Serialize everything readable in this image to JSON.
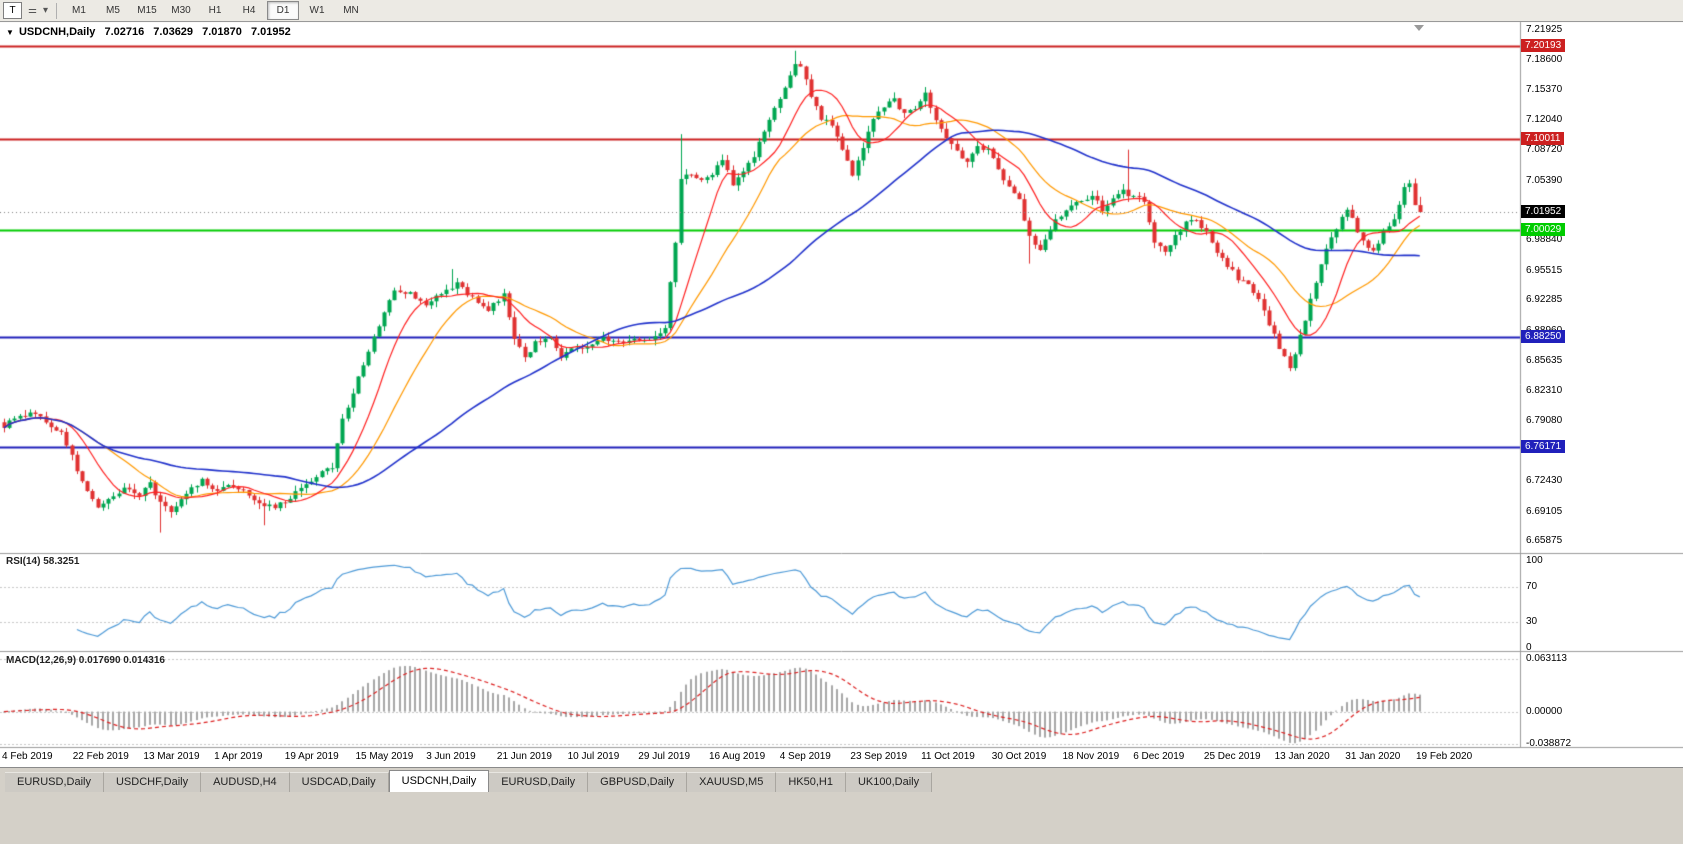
{
  "colors": {
    "up_candle": "#00a651",
    "down_candle": "#e03232",
    "rsi_line": "#4f9bd8",
    "macd_hist": "#a8a8a8",
    "macd_signal": "#dd2222",
    "current_price_bg": "#000000"
  },
  "toolbar": {
    "window_label": "T",
    "icons": [
      {
        "name": "chart-tool-icon",
        "glyph": "⚌"
      },
      {
        "name": "dropdown-caret-icon",
        "glyph": "▾"
      }
    ],
    "timeframes": [
      {
        "label": "M1",
        "active": false
      },
      {
        "label": "M5",
        "active": false
      },
      {
        "label": "M15",
        "active": false
      },
      {
        "label": "M30",
        "active": false
      },
      {
        "label": "H1",
        "active": false
      },
      {
        "label": "H4",
        "active": false
      },
      {
        "label": "D1",
        "active": true
      },
      {
        "label": "W1",
        "active": false
      },
      {
        "label": "MN",
        "active": false
      }
    ]
  },
  "chart": {
    "title": {
      "arrow": "▼",
      "symbol": "USDCNH,Daily",
      "open": "7.02716",
      "high": "7.03629",
      "low": "7.01870",
      "close": "7.01952"
    }
  },
  "price_axis": {
    "labels": [
      {
        "text": "7.21925",
        "value": 7.21925
      },
      {
        "text": "7.18600",
        "value": 7.186
      },
      {
        "text": "7.15370",
        "value": 7.1537
      },
      {
        "text": "7.12040",
        "value": 7.1204
      },
      {
        "text": "7.08720",
        "value": 7.0872
      },
      {
        "text": "7.05390",
        "value": 7.0539
      },
      {
        "text": "6.98840",
        "value": 6.9884
      },
      {
        "text": "6.95515",
        "value": 6.95515
      },
      {
        "text": "6.92285",
        "value": 6.92285
      },
      {
        "text": "6.88960",
        "value": 6.8896
      },
      {
        "text": "6.85635",
        "value": 6.85635
      },
      {
        "text": "6.82310",
        "value": 6.8231
      },
      {
        "text": "6.79080",
        "value": 6.7908
      },
      {
        "text": "6.75755",
        "value": 6.75755
      },
      {
        "text": "6.72430",
        "value": 6.7243
      },
      {
        "text": "6.69105",
        "value": 6.69105
      },
      {
        "text": "6.65875",
        "value": 6.65875
      }
    ]
  },
  "hlines": [
    {
      "text": "7.20193",
      "value": 7.20193,
      "color": "#cc2020",
      "type": "resistance-upper"
    },
    {
      "text": "7.10011",
      "value": 7.10011,
      "color": "#cc2020",
      "type": "resistance-lower"
    },
    {
      "text": "7.00029",
      "value": 7.00029,
      "color": "#00cc00",
      "type": "pivot"
    },
    {
      "text": "6.88250",
      "value": 6.8825,
      "color": "#2020bb",
      "type": "support-upper"
    },
    {
      "text": "6.76171",
      "value": 6.76171,
      "color": "#2020bb",
      "type": "support-lower"
    }
  ],
  "current_price": {
    "text": "7.01952",
    "value": 7.01952
  },
  "rsi_panel": {
    "label": "RSI(14) 58.3251",
    "axis": [
      {
        "text": "100",
        "value": 100
      },
      {
        "text": "70",
        "value": 70
      },
      {
        "text": "30",
        "value": 30
      },
      {
        "text": "0",
        "value": 0
      }
    ],
    "levels": [
      70,
      30
    ]
  },
  "macd_panel": {
    "label": "MACD(12,26,9) 0.017690 0.014316",
    "axis": [
      {
        "text": "0.063113",
        "value": 0.063113
      },
      {
        "text": "0.00000",
        "value": 0
      },
      {
        "text": "-0.038872",
        "value": -0.038872
      }
    ]
  },
  "time_axis": {
    "labels": [
      "4 Feb 2019",
      "22 Feb 2019",
      "13 Mar 2019",
      "1 Apr 2019",
      "19 Apr 2019",
      "15 May 2019",
      "3 Jun 2019",
      "21 Jun 2019",
      "10 Jul 2019",
      "29 Jul 2019",
      "16 Aug 2019",
      "4 Sep 2019",
      "23 Sep 2019",
      "11 Oct 2019",
      "30 Oct 2019",
      "18 Nov 2019",
      "6 Dec 2019",
      "25 Dec 2019",
      "13 Jan 2020",
      "31 Jan 2020",
      "19 Feb 2020"
    ]
  },
  "tabs": [
    {
      "label": "EURUSD,Daily",
      "active": false
    },
    {
      "label": "USDCHF,Daily",
      "active": false
    },
    {
      "label": "AUDUSD,H4",
      "active": false
    },
    {
      "label": "USDCAD,Daily",
      "active": false
    },
    {
      "label": "USDCNH,Daily",
      "active": true
    },
    {
      "label": "EURUSD,Daily",
      "active": false
    },
    {
      "label": "GBPUSD,Daily",
      "active": false
    },
    {
      "label": "XAUUSD,M5",
      "active": false
    },
    {
      "label": "HK50,H1",
      "active": false
    },
    {
      "label": "UK100,Daily",
      "active": false
    }
  ],
  "chart_data": {
    "type": "candlestick",
    "symbol": "USDCNH",
    "timeframe": "Daily",
    "n_candles": 273,
    "last_ohlc": {
      "open": 7.02716,
      "high": 7.03629,
      "low": 7.0187,
      "close": 7.01952
    },
    "horizontal_lines": [
      7.20193,
      7.10011,
      7.00029,
      6.8825,
      6.76171
    ],
    "price_axis_range": {
      "top": 7.23,
      "bottom": 6.643
    },
    "close_path_anchors": [
      [
        0,
        6.785
      ],
      [
        3,
        6.795
      ],
      [
        6,
        6.8
      ],
      [
        9,
        6.782
      ],
      [
        11,
        6.778
      ],
      [
        13,
        6.752
      ],
      [
        15,
        6.722
      ],
      [
        18,
        6.697
      ],
      [
        20,
        6.703
      ],
      [
        23,
        6.716
      ],
      [
        26,
        6.71
      ],
      [
        28,
        6.722
      ],
      [
        30,
        6.7
      ],
      [
        32,
        6.692
      ],
      [
        35,
        6.712
      ],
      [
        38,
        6.726
      ],
      [
        40,
        6.714
      ],
      [
        43,
        6.721
      ],
      [
        46,
        6.716
      ],
      [
        49,
        6.701
      ],
      [
        52,
        6.696
      ],
      [
        55,
        6.706
      ],
      [
        58,
        6.721
      ],
      [
        61,
        6.734
      ],
      [
        63,
        6.739
      ],
      [
        65,
        6.792
      ],
      [
        67,
        6.822
      ],
      [
        69,
        6.852
      ],
      [
        71,
        6.882
      ],
      [
        73,
        6.908
      ],
      [
        75,
        6.936
      ],
      [
        78,
        6.93
      ],
      [
        81,
        6.916
      ],
      [
        84,
        6.932
      ],
      [
        87,
        6.94
      ],
      [
        90,
        6.926
      ],
      [
        93,
        6.912
      ],
      [
        96,
        6.928
      ],
      [
        98,
        6.882
      ],
      [
        100,
        6.86
      ],
      [
        102,
        6.876
      ],
      [
        105,
        6.881
      ],
      [
        107,
        6.857
      ],
      [
        109,
        6.871
      ],
      [
        112,
        6.873
      ],
      [
        115,
        6.881
      ],
      [
        118,
        6.876
      ],
      [
        121,
        6.881
      ],
      [
        124,
        6.879
      ],
      [
        127,
        6.892
      ],
      [
        128,
        6.942
      ],
      [
        129,
        6.985
      ],
      [
        130,
        7.055
      ],
      [
        132,
        7.062
      ],
      [
        134,
        7.056
      ],
      [
        136,
        7.062
      ],
      [
        138,
        7.078
      ],
      [
        140,
        7.048
      ],
      [
        142,
        7.062
      ],
      [
        144,
        7.082
      ],
      [
        146,
        7.106
      ],
      [
        148,
        7.132
      ],
      [
        150,
        7.158
      ],
      [
        152,
        7.182
      ],
      [
        153,
        7.179
      ],
      [
        155,
        7.148
      ],
      [
        157,
        7.122
      ],
      [
        159,
        7.117
      ],
      [
        161,
        7.088
      ],
      [
        163,
        7.062
      ],
      [
        165,
        7.092
      ],
      [
        167,
        7.122
      ],
      [
        169,
        7.136
      ],
      [
        171,
        7.142
      ],
      [
        173,
        7.127
      ],
      [
        175,
        7.132
      ],
      [
        177,
        7.149
      ],
      [
        179,
        7.122
      ],
      [
        181,
        7.102
      ],
      [
        183,
        7.087
      ],
      [
        185,
        7.072
      ],
      [
        187,
        7.092
      ],
      [
        189,
        7.087
      ],
      [
        191,
        7.067
      ],
      [
        193,
        7.047
      ],
      [
        195,
        7.032
      ],
      [
        197,
        6.992
      ],
      [
        199,
        6.977
      ],
      [
        201,
        7.002
      ],
      [
        203,
        7.017
      ],
      [
        205,
        7.027
      ],
      [
        207,
        7.032
      ],
      [
        209,
        7.037
      ],
      [
        211,
        7.022
      ],
      [
        213,
        7.032
      ],
      [
        215,
        7.042
      ],
      [
        217,
        7.037
      ],
      [
        219,
        7.032
      ],
      [
        221,
        6.987
      ],
      [
        223,
        6.977
      ],
      [
        225,
        6.992
      ],
      [
        227,
        7.007
      ],
      [
        229,
        7.012
      ],
      [
        231,
        6.997
      ],
      [
        233,
        6.977
      ],
      [
        235,
        6.962
      ],
      [
        237,
        6.947
      ],
      [
        239,
        6.942
      ],
      [
        241,
        6.922
      ],
      [
        243,
        6.897
      ],
      [
        245,
        6.872
      ],
      [
        247,
        6.847
      ],
      [
        248,
        6.864
      ],
      [
        250,
        6.902
      ],
      [
        252,
        6.942
      ],
      [
        254,
        6.977
      ],
      [
        256,
        7.002
      ],
      [
        258,
        7.022
      ],
      [
        259,
        7.012
      ],
      [
        261,
        6.987
      ],
      [
        263,
        6.977
      ],
      [
        265,
        6.997
      ],
      [
        267,
        7.012
      ],
      [
        269,
        7.047
      ],
      [
        271,
        7.053
      ],
      [
        272,
        7.0195
      ]
    ],
    "forced_extremes": [
      {
        "index": 30,
        "low": 6.668
      },
      {
        "index": 50,
        "low": 6.676
      },
      {
        "index": 86,
        "high": 6.957
      },
      {
        "index": 130,
        "high": 7.105
      },
      {
        "index": 152,
        "high": 7.1965
      },
      {
        "index": 197,
        "low": 6.963
      },
      {
        "index": 216,
        "high": 7.088
      },
      {
        "index": 247,
        "low": 6.845
      }
    ],
    "moving_averages": [
      {
        "period": 10,
        "color": "#ff2222"
      },
      {
        "period": 20,
        "color": "#ff9900"
      },
      {
        "period": 55,
        "color": "#2233cc"
      }
    ],
    "indicators": {
      "rsi": {
        "period": 14,
        "current": 58.3251,
        "scale": [
          0,
          100
        ],
        "levels": [
          30,
          70
        ]
      },
      "macd": {
        "fast": 12,
        "slow": 26,
        "signal": 9,
        "current_macd": 0.01769,
        "current_signal": 0.014316,
        "scale": [
          -0.038872,
          0.063113
        ]
      }
    }
  }
}
